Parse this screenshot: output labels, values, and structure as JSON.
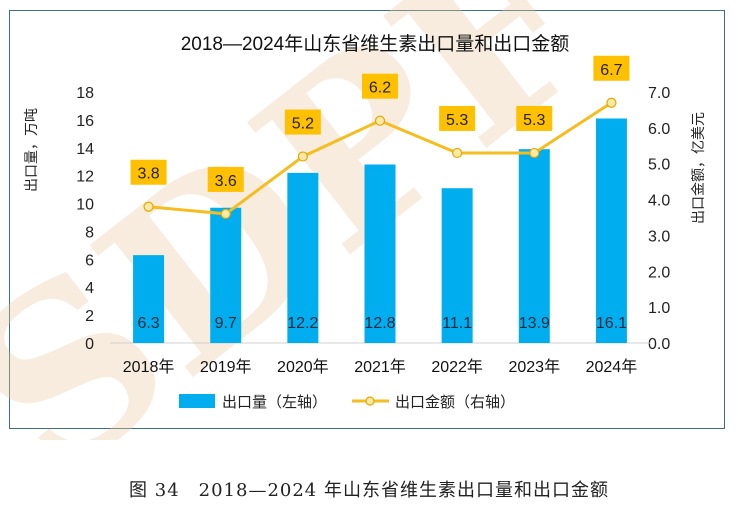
{
  "chart_data": {
    "type": "bar+line",
    "title": "2018—2024年山东省维生素出口量和出口金额",
    "categories": [
      "2018年",
      "2019年",
      "2020年",
      "2021年",
      "2022年",
      "2023年",
      "2024年"
    ],
    "series": [
      {
        "name": "出口量（左轴）",
        "type": "bar",
        "axis": "left",
        "color": "#00aeef",
        "values": [
          6.3,
          9.7,
          12.2,
          12.8,
          11.1,
          13.9,
          16.1
        ]
      },
      {
        "name": "出口金额（右轴）",
        "type": "line",
        "axis": "right",
        "color": "#f5bd1f",
        "values": [
          3.8,
          3.6,
          5.2,
          6.2,
          5.3,
          5.3,
          6.7
        ]
      }
    ],
    "ylabel_left": "出口量，万吨",
    "ylabel_right": "出口金额，亿美元",
    "ylim_left": [
      0,
      18
    ],
    "yticks_left": [
      "0",
      "2",
      "4",
      "6",
      "8",
      "10",
      "12",
      "14",
      "16",
      "18"
    ],
    "ylim_right": [
      0,
      7
    ],
    "yticks_right": [
      "0.0",
      "1.0",
      "2.0",
      "3.0",
      "4.0",
      "5.0",
      "6.0",
      "7.0"
    ],
    "legend_position": "bottom",
    "grid": false,
    "label_box_color": "#ffc000",
    "watermark": "SDPF"
  },
  "caption": "图 34　2018—2024 年山东省维生素出口量和出口金额"
}
